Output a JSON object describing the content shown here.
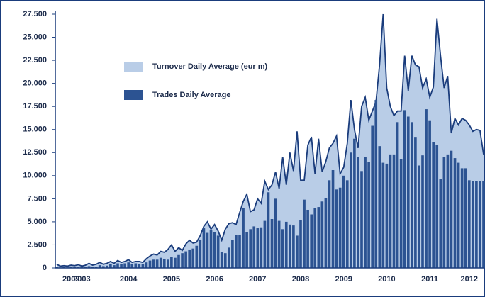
{
  "chart_data": {
    "type": "combo",
    "categories": [
      null,
      null,
      null,
      null,
      "2002",
      null,
      null,
      "2003",
      null,
      null,
      null,
      null,
      null,
      null,
      null,
      null,
      null,
      null,
      null,
      null,
      "2004",
      null,
      null,
      null,
      null,
      null,
      null,
      null,
      null,
      null,
      null,
      null,
      "2005",
      null,
      null,
      null,
      null,
      null,
      null,
      null,
      null,
      null,
      null,
      null,
      "2006",
      null,
      null,
      null,
      null,
      null,
      null,
      null,
      null,
      null,
      null,
      null,
      "2007",
      null,
      null,
      null,
      null,
      null,
      null,
      null,
      null,
      null,
      null,
      null,
      "2008",
      null,
      null,
      null,
      null,
      null,
      null,
      null,
      null,
      null,
      null,
      null,
      "2009",
      null,
      null,
      null,
      null,
      null,
      null,
      null,
      null,
      null,
      null,
      null,
      "2010",
      null,
      null,
      null,
      null,
      null,
      null,
      null,
      null,
      null,
      null,
      null,
      "2011",
      null,
      null,
      null,
      null,
      null,
      null,
      null,
      null,
      null,
      null,
      "2012",
      null,
      null,
      null,
      null
    ],
    "series": [
      {
        "name": "Turnover Daily Average (eur m)",
        "type": "area",
        "color": "#b9cde7",
        "line_color": "#1a3c7c",
        "values": [
          400,
          200,
          250,
          200,
          300,
          250,
          350,
          200,
          300,
          500,
          300,
          400,
          600,
          400,
          500,
          700,
          500,
          800,
          600,
          700,
          900,
          600,
          700,
          700,
          600,
          1000,
          1300,
          1500,
          1400,
          1800,
          1700,
          2000,
          2500,
          1800,
          2200,
          1900,
          2600,
          3000,
          2700,
          2800,
          3500,
          4500,
          5000,
          4200,
          4700,
          4000,
          3000,
          4200,
          4800,
          4900,
          4700,
          6000,
          7200,
          8000,
          6100,
          6300,
          7500,
          7000,
          9400,
          8500,
          9000,
          10400,
          8600,
          12000,
          9000,
          12500,
          10500,
          14800,
          9500,
          9500,
          13300,
          14200,
          10200,
          14000,
          10400,
          11500,
          13000,
          13500,
          14300,
          10200,
          10900,
          13500,
          18200,
          15000,
          13000,
          17500,
          18500,
          16000,
          17000,
          18000,
          22000,
          27500,
          19500,
          17500,
          16500,
          17000,
          17000,
          23000,
          19200,
          23000,
          22000,
          21800,
          19500,
          20500,
          18500,
          19600,
          27000,
          23000,
          19500,
          20800,
          14600,
          16200,
          15500,
          16200,
          16000,
          15500,
          14800,
          15000,
          14900,
          12300
        ]
      },
      {
        "name": "Trades Daily Average",
        "type": "bar",
        "color": "#2c5392",
        "values": [
          100,
          50,
          80,
          60,
          100,
          80,
          120,
          70,
          100,
          200,
          100,
          150,
          300,
          200,
          250,
          400,
          300,
          500,
          400,
          500,
          600,
          400,
          500,
          450,
          400,
          600,
          800,
          900,
          900,
          1100,
          1000,
          900,
          1200,
          1100,
          1400,
          1600,
          1800,
          2000,
          2100,
          2400,
          3000,
          4300,
          3800,
          4100,
          3900,
          3500,
          1700,
          1600,
          2200,
          3000,
          3600,
          3600,
          6500,
          3900,
          4200,
          4500,
          4300,
          4400,
          5100,
          8200,
          5300,
          7500,
          5100,
          4200,
          5000,
          4700,
          4600,
          3500,
          5200,
          7400,
          6300,
          5800,
          6500,
          6600,
          7200,
          7600,
          9500,
          10600,
          8500,
          8700,
          10000,
          9500,
          12500,
          14000,
          12000,
          10500,
          12000,
          11500,
          15400,
          18200,
          13200,
          11400,
          11300,
          12300,
          12300,
          15800,
          11800,
          17100,
          16400,
          15800,
          14200,
          11100,
          12200,
          17200,
          16000,
          13600,
          13300,
          9600,
          12000,
          12300,
          12700,
          11900,
          11400,
          10800,
          10800,
          9500,
          9400,
          9400,
          9400,
          9400
        ]
      }
    ],
    "ylim": [
      0,
      27500
    ],
    "yticks": [
      0,
      {
        "value": 2500,
        "label": "2.500"
      },
      {
        "value": 5000,
        "label": "5.000"
      },
      {
        "value": 7500,
        "label": "7.500"
      },
      {
        "value": 10000,
        "label": "10.000"
      },
      {
        "value": 12500,
        "label": "12.500"
      },
      {
        "value": 15000,
        "label": "15.000"
      },
      {
        "value": 17500,
        "label": "17.500"
      },
      {
        "value": 20000,
        "label": "20.000"
      },
      {
        "value": 22500,
        "label": "22.500"
      },
      {
        "value": 25000,
        "label": "25.000"
      },
      {
        "value": 27500,
        "label": "27.500"
      }
    ],
    "grid": false,
    "legend": "upper left"
  }
}
